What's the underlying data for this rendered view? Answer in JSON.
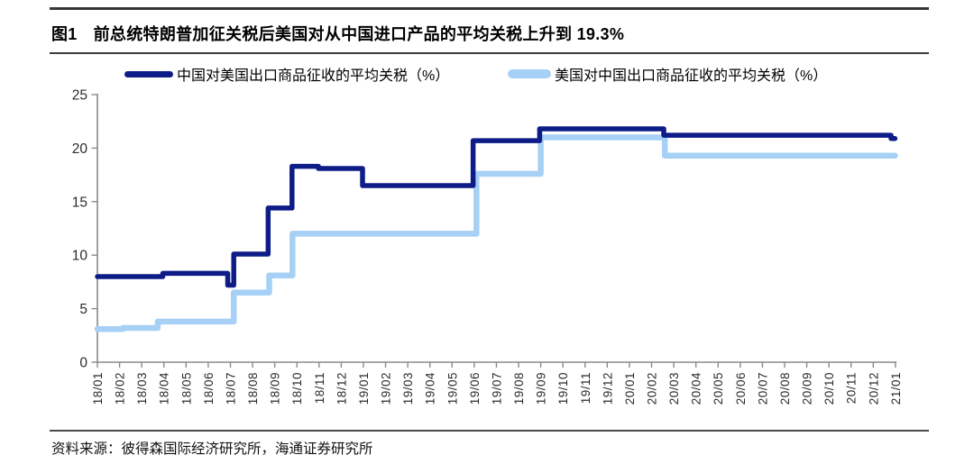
{
  "figure": {
    "tag": "图1",
    "title": "前总统特朗普加征关税后美国对从中国进口产品的平均关税上升到 19.3%"
  },
  "source": "资料来源：彼得森国际经济研究所，海通证券研究所",
  "colors": {
    "china_line": "#0d1c87",
    "us_line": "#a6d0f5",
    "axis": "#8a8a8a",
    "tick_label": "#2b2b2b",
    "divider": "#3d3d3d"
  },
  "chart_data": {
    "type": "line",
    "subtype": "step",
    "title": "",
    "xlabel": "",
    "ylabel": "",
    "ylim": [
      0,
      25
    ],
    "yticks": [
      0,
      5,
      10,
      15,
      20,
      25
    ],
    "grid": false,
    "legend_position": "top",
    "x_labels": [
      "18/01",
      "18/02",
      "18/03",
      "18/04",
      "18/05",
      "18/06",
      "18/07",
      "18/08",
      "18/09",
      "18/10",
      "18/11",
      "18/12",
      "19/01",
      "19/02",
      "19/03",
      "19/04",
      "19/05",
      "19/06",
      "19/07",
      "19/08",
      "19/09",
      "19/10",
      "19/11",
      "19/12",
      "20/01",
      "20/02",
      "20/03",
      "20/04",
      "20/05",
      "20/06",
      "20/07",
      "20/08",
      "20/09",
      "20/10",
      "20/11",
      "20/12",
      "21/01"
    ],
    "end_x": 36,
    "series": [
      {
        "name": "中国对美国出口商品征收的平均关税（%）",
        "color": "#0d1c87",
        "stroke_width": 5.5,
        "steps": [
          {
            "x": 0,
            "label": "18/01",
            "value": 8.0
          },
          {
            "x": 2.95,
            "label": "18/04",
            "value": 8.3
          },
          {
            "x": 5.88,
            "label": "18/07",
            "value": 7.2
          },
          {
            "x": 6.15,
            "label": "18/07",
            "value": 10.1
          },
          {
            "x": 7.7,
            "label": "18/08",
            "value": 14.4
          },
          {
            "x": 8.78,
            "label": "18/09",
            "value": 18.3
          },
          {
            "x": 9.97,
            "label": "18/11",
            "value": 18.1
          },
          {
            "x": 11.96,
            "label": "19/01",
            "value": 16.5
          },
          {
            "x": 16.95,
            "label": "19/06",
            "value": 20.7
          },
          {
            "x": 19.95,
            "label": "19/09",
            "value": 21.8
          },
          {
            "x": 25.55,
            "label": "20/02",
            "value": 21.2
          },
          {
            "x": 35.8,
            "label": "21/01",
            "value": 20.9
          }
        ]
      },
      {
        "name": "美国对中国出口商品征收的平均关税（%）",
        "color": "#a6d0f5",
        "stroke_width": 6.5,
        "steps": [
          {
            "x": 0,
            "label": "18/01",
            "value": 3.1
          },
          {
            "x": 1.15,
            "label": "18/02",
            "value": 3.2
          },
          {
            "x": 2.72,
            "label": "18/03",
            "value": 3.8
          },
          {
            "x": 6.15,
            "label": "18/07",
            "value": 6.5
          },
          {
            "x": 7.75,
            "label": "18/08",
            "value": 8.1
          },
          {
            "x": 8.8,
            "label": "18/09",
            "value": 12.0
          },
          {
            "x": 17.1,
            "label": "19/06",
            "value": 17.6
          },
          {
            "x": 20.0,
            "label": "19/09",
            "value": 21.0
          },
          {
            "x": 25.6,
            "label": "20/02",
            "value": 19.3
          }
        ]
      }
    ]
  }
}
